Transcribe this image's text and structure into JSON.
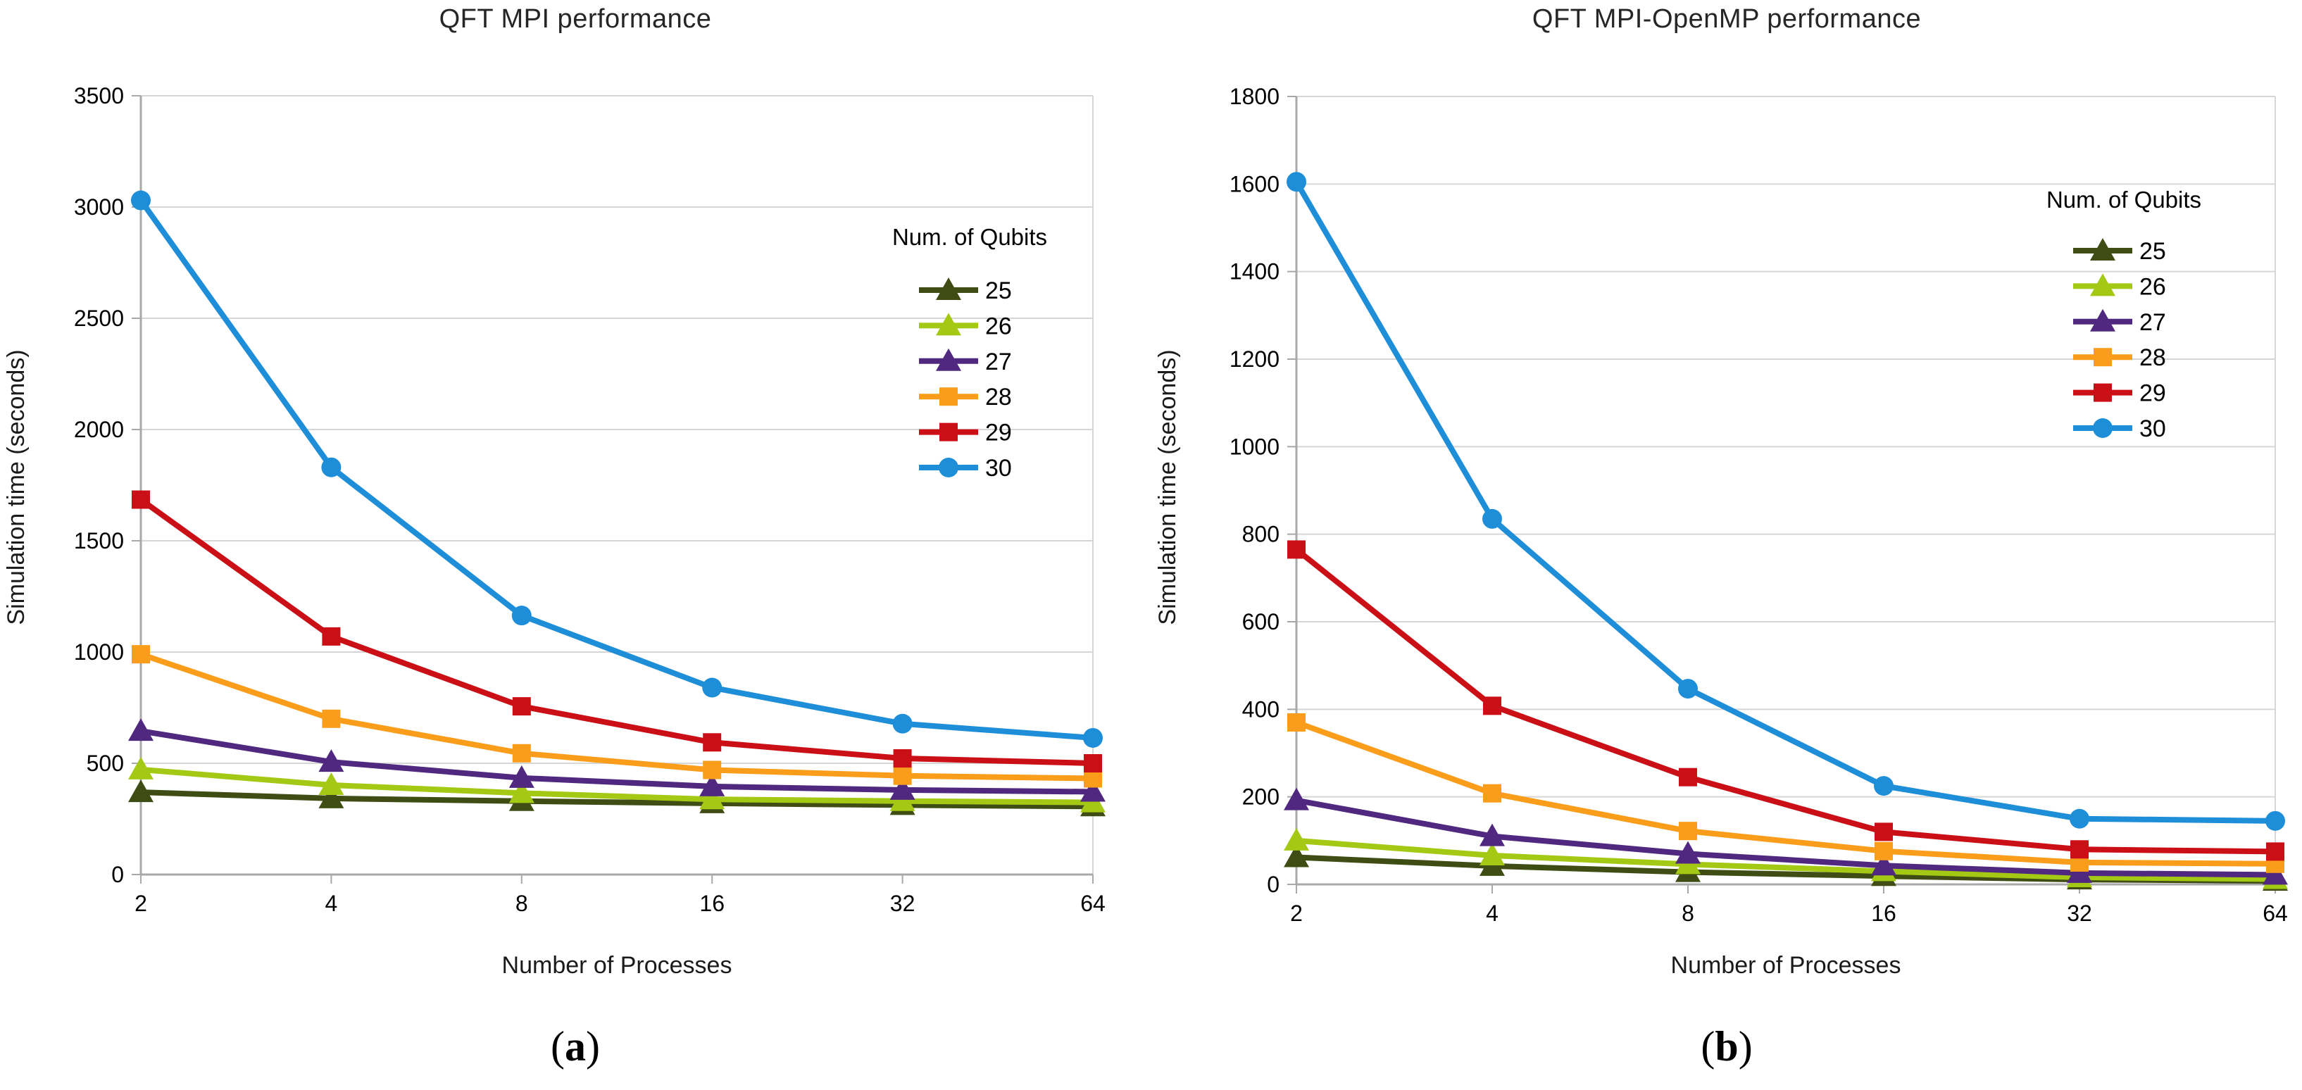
{
  "colors": {
    "background": "#ffffff",
    "grid": "#d6d6d6",
    "axis": "#a8a8a8",
    "tick_text": "#000000",
    "title_text": "#262626"
  },
  "chart_data": [
    {
      "type": "line",
      "title": "QFT MPI performance",
      "xlabel": "Number of Processes",
      "ylabel": "Simulation time (seconds)",
      "caption_open": "(",
      "caption_letter": "a",
      "caption_close": ")",
      "legend_title": "Num. of Qubits",
      "legend_position": "inside-top-right",
      "grid": "horizontal",
      "x_categories": [
        "2",
        "4",
        "8",
        "16",
        "32",
        "64"
      ],
      "x_values": [
        2,
        4,
        8,
        16,
        32,
        64
      ],
      "ylim": [
        0,
        3500
      ],
      "yticks": [
        0,
        500,
        1000,
        1500,
        2000,
        2500,
        3000,
        3500
      ],
      "series": [
        {
          "name": "25",
          "color": "#3f4d15",
          "marker": "triangle",
          "values": [
            370,
            342,
            330,
            320,
            312,
            306
          ]
        },
        {
          "name": "26",
          "color": "#a4c915",
          "marker": "triangle",
          "values": [
            472,
            402,
            366,
            338,
            330,
            324
          ]
        },
        {
          "name": "27",
          "color": "#50287f",
          "marker": "triangle",
          "values": [
            645,
            506,
            434,
            396,
            380,
            372
          ]
        },
        {
          "name": "28",
          "color": "#f99d1b",
          "marker": "square",
          "values": [
            990,
            700,
            545,
            470,
            444,
            432
          ]
        },
        {
          "name": "29",
          "color": "#ca1016",
          "marker": "square",
          "values": [
            1685,
            1070,
            756,
            594,
            522,
            500
          ]
        },
        {
          "name": "30",
          "color": "#1f8ed8",
          "marker": "circle",
          "values": [
            3030,
            1830,
            1164,
            840,
            678,
            614
          ]
        }
      ]
    },
    {
      "type": "line",
      "title": "QFT MPI-OpenMP performance",
      "xlabel": "Number of Processes",
      "ylabel": "Simulation time (seconds)",
      "caption_open": "(",
      "caption_letter": "b",
      "caption_close": ")",
      "legend_title": "Num. of Qubits",
      "legend_position": "inside-top-right",
      "grid": "horizontal",
      "x_categories": [
        "2",
        "4",
        "8",
        "16",
        "32",
        "64"
      ],
      "x_values": [
        2,
        4,
        8,
        16,
        32,
        64
      ],
      "ylim": [
        0,
        1800
      ],
      "yticks": [
        0,
        200,
        400,
        600,
        800,
        1000,
        1200,
        1400,
        1600,
        1800
      ],
      "series": [
        {
          "name": "25",
          "color": "#3f4d15",
          "marker": "triangle",
          "values": [
            62,
            42,
            28,
            19,
            11,
            8
          ]
        },
        {
          "name": "26",
          "color": "#a4c915",
          "marker": "triangle",
          "values": [
            100,
            66,
            46,
            30,
            16,
            12
          ]
        },
        {
          "name": "27",
          "color": "#50287f",
          "marker": "triangle",
          "values": [
            192,
            110,
            70,
            43,
            26,
            22
          ]
        },
        {
          "name": "28",
          "color": "#f99d1b",
          "marker": "square",
          "values": [
            370,
            208,
            122,
            76,
            50,
            47
          ]
        },
        {
          "name": "29",
          "color": "#ca1016",
          "marker": "square",
          "values": [
            765,
            408,
            245,
            120,
            80,
            75
          ]
        },
        {
          "name": "30",
          "color": "#1f8ed8",
          "marker": "circle",
          "values": [
            1605,
            835,
            447,
            225,
            150,
            145
          ]
        }
      ]
    }
  ]
}
